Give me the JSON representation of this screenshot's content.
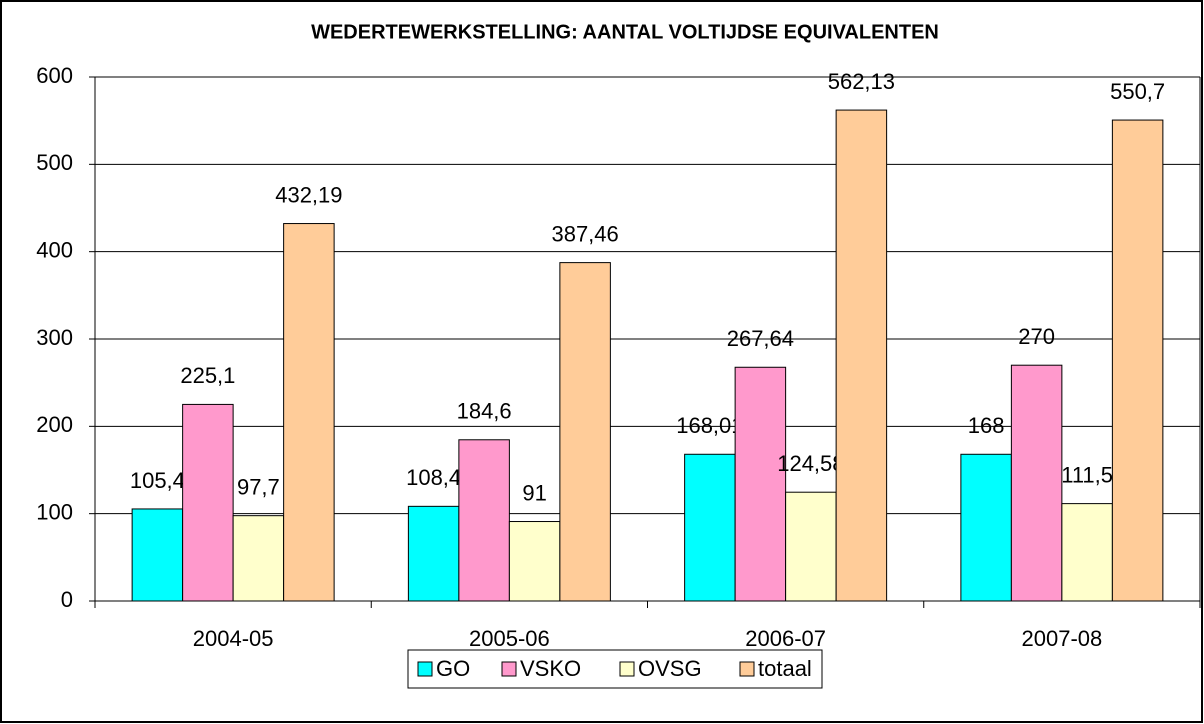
{
  "chart_data": {
    "type": "bar",
    "title": "WEDERTEWERKSTELLING: AANTAL VOLTIJDSE EQUIVALENTEN",
    "categories": [
      "2004-05",
      "2005-06",
      "2006-07",
      "2007-08"
    ],
    "series": [
      {
        "name": "GO",
        "color": "#00ffff",
        "values": [
          105.4,
          108.4,
          168.01,
          168
        ],
        "value_labels": [
          "105,4",
          "108,4",
          "168,01",
          "168"
        ]
      },
      {
        "name": "VSKO",
        "color": "#ff99cc",
        "values": [
          225.1,
          184.6,
          267.64,
          270
        ],
        "value_labels": [
          "225,1",
          "184,6",
          "267,64",
          "270"
        ]
      },
      {
        "name": "OVSG",
        "color": "#ffffcc",
        "values": [
          97.7,
          91,
          124.58,
          111.5
        ],
        "value_labels": [
          "97,7",
          "91",
          "124,58",
          "111,5"
        ]
      },
      {
        "name": "totaal",
        "color": "#ffcc99",
        "values": [
          432.19,
          387.46,
          562.13,
          550.7
        ],
        "value_labels": [
          "432,19",
          "387,46",
          "562,13",
          "550,7"
        ]
      }
    ],
    "ylim": [
      0,
      600
    ],
    "yticks": [
      0,
      100,
      200,
      300,
      400,
      500,
      600
    ],
    "grid": true,
    "legend": "bottom"
  }
}
